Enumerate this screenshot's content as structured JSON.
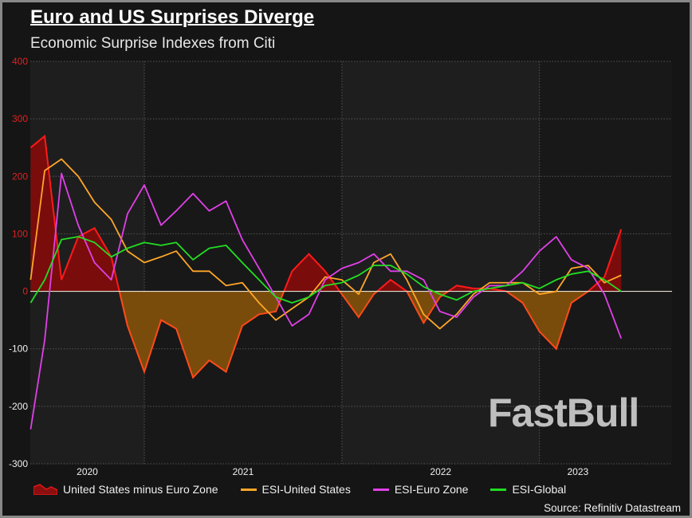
{
  "title": "Euro and US Surprises Diverge",
  "subtitle": "Economic Surprise Indexes from Citi",
  "source": "Source: Refinitiv Datastream",
  "watermark": "FastBull",
  "chart_data": {
    "type": "line",
    "title": "Euro and US Surprises Diverge",
    "subtitle": "Economic Surprise Indexes from Citi",
    "xlabel": "",
    "ylabel": "",
    "ylim": [
      -300,
      400
    ],
    "yticks": [
      400,
      300,
      200,
      100,
      0,
      -100,
      -200,
      -300
    ],
    "xticks": [
      "2020",
      "2021",
      "2022",
      "2023"
    ],
    "grid": true,
    "legend_position": "bottom",
    "x": [
      "2020-06-05",
      "2020-07-01",
      "2020-08-01",
      "2020-09-01",
      "2020-10-01",
      "2020-11-01",
      "2020-12-01",
      "2021-01-01",
      "2021-02-01",
      "2021-03-01",
      "2021-04-01",
      "2021-05-01",
      "2021-06-01",
      "2021-07-01",
      "2021-08-01",
      "2021-09-01",
      "2021-10-01",
      "2021-11-01",
      "2021-12-01",
      "2022-01-01",
      "2022-02-01",
      "2022-03-01",
      "2022-04-01",
      "2022-05-01",
      "2022-06-01",
      "2022-07-01",
      "2022-08-01",
      "2022-09-01",
      "2022-10-01",
      "2022-11-01",
      "2022-12-01",
      "2023-01-01",
      "2023-02-01",
      "2023-03-01",
      "2023-04-01",
      "2023-05-01",
      "2023-06-01"
    ],
    "series": [
      {
        "name": "United States minus Euro Zone",
        "style": "area",
        "color": "#ff1a1a",
        "fill_positive": "#7a0c0c",
        "fill_negative": "#7a4c0c",
        "values": [
          250,
          270,
          20,
          95,
          110,
          60,
          -60,
          -140,
          -50,
          -65,
          -150,
          -120,
          -140,
          -60,
          -40,
          -35,
          35,
          65,
          35,
          -5,
          -45,
          -5,
          20,
          0,
          -55,
          -10,
          10,
          5,
          5,
          0,
          -20,
          -70,
          -100,
          -20,
          0,
          25,
          108
        ]
      },
      {
        "name": "ESI-United States",
        "style": "line",
        "color": "#ffa628",
        "values": [
          20,
          210,
          230,
          200,
          155,
          125,
          70,
          50,
          60,
          70,
          35,
          35,
          10,
          15,
          -20,
          -50,
          -30,
          -10,
          25,
          20,
          -5,
          50,
          65,
          20,
          -40,
          -65,
          -40,
          -5,
          15,
          15,
          15,
          -5,
          0,
          40,
          45,
          15,
          28
        ]
      },
      {
        "name": "ESI-Euro Zone",
        "style": "line",
        "color": "#e040e8",
        "values": [
          -240,
          -85,
          205,
          115,
          50,
          20,
          135,
          185,
          115,
          140,
          170,
          140,
          157,
          90,
          40,
          -10,
          -60,
          -40,
          20,
          40,
          50,
          65,
          35,
          35,
          20,
          -35,
          -45,
          -10,
          10,
          10,
          35,
          70,
          95,
          55,
          40,
          -5,
          -82
        ]
      },
      {
        "name": "ESI-Global",
        "style": "line",
        "color": "#22dd22",
        "values": [
          -20,
          20,
          90,
          95,
          85,
          60,
          75,
          85,
          80,
          85,
          55,
          75,
          80,
          50,
          20,
          -10,
          -20,
          -10,
          10,
          15,
          28,
          45,
          45,
          30,
          8,
          -5,
          -15,
          0,
          5,
          10,
          15,
          5,
          20,
          30,
          35,
          20,
          0
        ]
      }
    ]
  }
}
